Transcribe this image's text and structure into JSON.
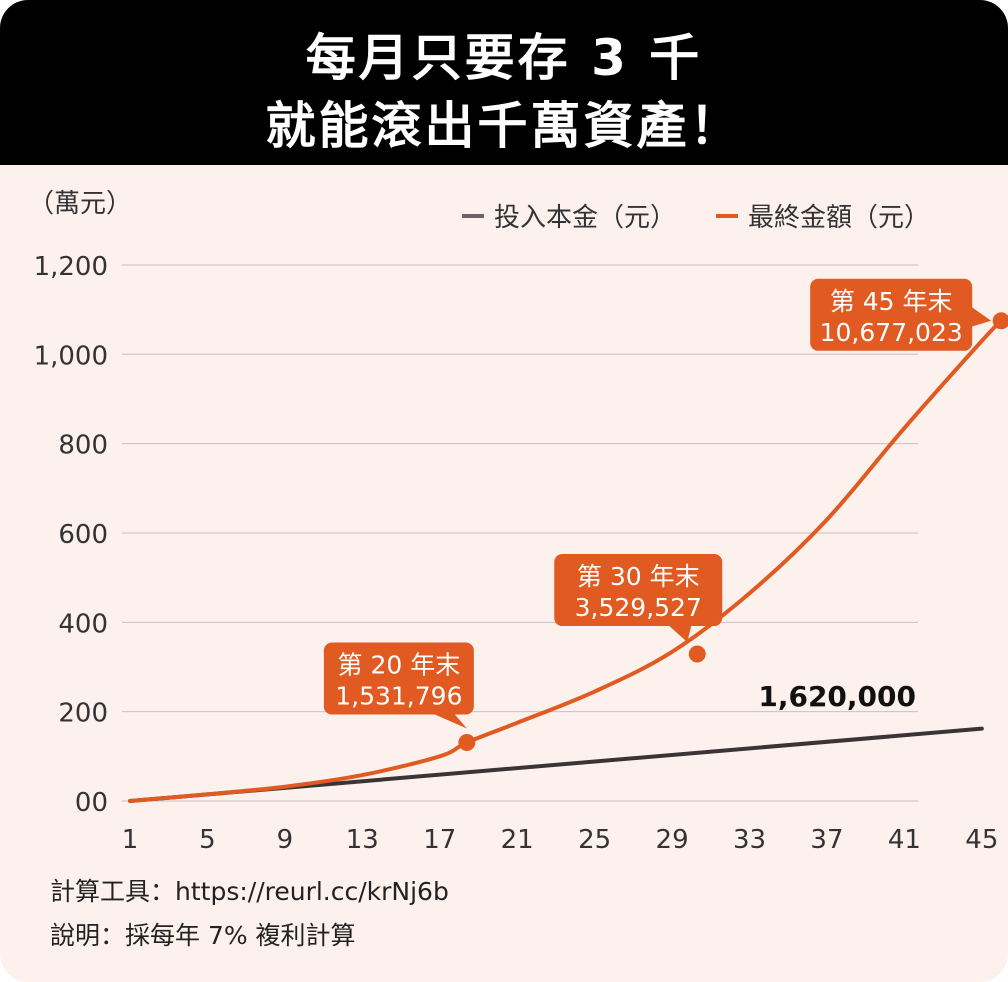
{
  "header": {
    "title_line1": "每月只要存 3 千",
    "title_line2": "就能滾出千萬資產！"
  },
  "colors": {
    "background": "#fdf1ee",
    "header_bg": "#000000",
    "principal_line": "#3a3435",
    "principal_legend": "#6e5f68",
    "final_line": "#e05a22",
    "callout_bg": "#e05a22",
    "grid": "#c8c0c0"
  },
  "chart_data": {
    "type": "line",
    "ylabel": "（萬元）",
    "ylim": [
      0,
      1200
    ],
    "xlim": [
      1,
      46
    ],
    "xticks": [
      "1",
      "5",
      "9",
      "13",
      "17",
      "21",
      "25",
      "29",
      "33",
      "37",
      "41",
      "45"
    ],
    "yticks": [
      "00",
      "200",
      "400",
      "600",
      "800",
      "1,000",
      "1,200"
    ],
    "legend_position": "top-right",
    "grid": true,
    "series": [
      {
        "name": "投入本金（元）",
        "x": [
          1,
          45
        ],
        "values": [
          0,
          162
        ]
      },
      {
        "name": "最終金額（元）",
        "x": [
          1,
          5,
          9,
          13,
          17,
          18.4,
          21,
          25,
          29,
          33,
          37,
          41,
          45,
          46
        ],
        "values": [
          0,
          15,
          32,
          58,
          100,
          131,
          175,
          245,
          334,
          465,
          630,
          835,
          1030,
          1075
        ]
      }
    ],
    "annotations": [
      {
        "line1": "第 20 年末",
        "line2": "1,531,796",
        "x": 18.4,
        "y": 131
      },
      {
        "line1": "第 30 年末",
        "line2": "3,529,527",
        "x": 30.3,
        "y": 329
      },
      {
        "line1": "第 45 年末",
        "line2": "10,677,023",
        "x": 46,
        "y": 1075
      }
    ],
    "end_label": "1,620,000"
  },
  "footer": {
    "tool": "計算工具：https://reurl.cc/krNj6b",
    "note": "說明：採每年 7% 複利計算"
  }
}
